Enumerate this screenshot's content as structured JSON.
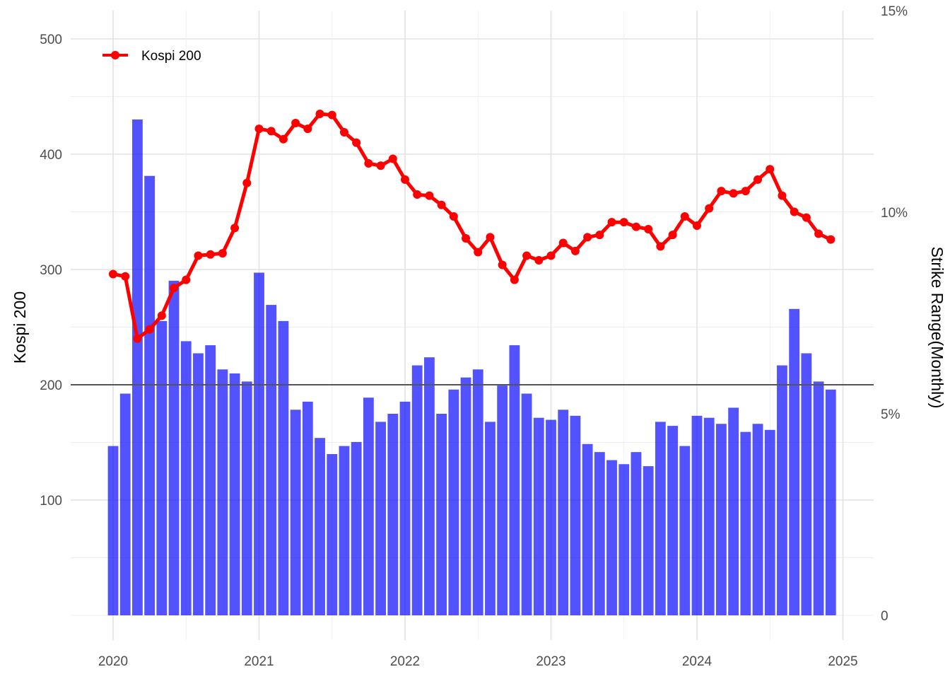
{
  "chart_data": {
    "type": "bar",
    "x_start": "2020-01",
    "x_ticks": [
      "2020",
      "2021",
      "2022",
      "2023",
      "2024",
      "2025"
    ],
    "left_axis": {
      "label": "Kospi 200",
      "ticks": [
        100,
        200,
        300,
        400,
        500
      ],
      "range": [
        0,
        500
      ]
    },
    "right_axis": {
      "label": "Strike Range(Monthly)",
      "ticks": [
        "0",
        "5%",
        "10%",
        "15%"
      ],
      "tick_values": [
        0,
        5,
        10,
        15
      ],
      "range_percent": [
        0,
        15
      ]
    },
    "grid": true,
    "legend": {
      "position": "top-left",
      "entries": [
        "Kospi 200"
      ]
    },
    "reference_line": {
      "axis": "left",
      "value": 200
    },
    "series": [
      {
        "name": "Strike Range(Monthly)",
        "type": "bar",
        "axis": "right",
        "unit": "%",
        "color": "#0000ff",
        "values": [
          4.2,
          5.5,
          12.3,
          10.9,
          7.3,
          8.3,
          6.8,
          6.5,
          6.7,
          6.1,
          6.0,
          5.8,
          8.5,
          7.7,
          7.3,
          5.1,
          5.3,
          4.4,
          4.0,
          4.2,
          4.3,
          5.4,
          4.8,
          5.0,
          5.3,
          6.2,
          6.4,
          5.0,
          5.6,
          5.9,
          6.1,
          4.8,
          5.7,
          6.7,
          5.5,
          4.9,
          4.85,
          5.1,
          4.95,
          4.25,
          4.05,
          3.85,
          3.75,
          4.05,
          3.7,
          4.8,
          4.7,
          4.2,
          4.95,
          4.9,
          4.75,
          5.15,
          4.55,
          4.75,
          4.6,
          6.2,
          7.6,
          6.5,
          5.8,
          5.6
        ]
      },
      {
        "name": "Kospi 200",
        "type": "line",
        "axis": "left",
        "color": "#ff0000",
        "values": [
          296,
          294,
          240,
          248,
          260,
          284,
          291,
          312,
          313,
          314,
          336,
          375,
          422,
          420,
          413,
          427,
          422,
          435,
          434,
          419,
          410,
          392,
          390,
          396,
          378,
          365,
          364,
          356,
          346,
          327,
          315,
          328,
          304,
          291,
          312,
          308,
          312,
          323,
          316,
          328,
          330,
          341,
          341,
          337,
          335,
          320,
          330,
          346,
          338,
          353,
          368,
          366,
          368,
          378,
          387,
          364,
          350,
          345,
          331,
          326
        ]
      }
    ]
  }
}
